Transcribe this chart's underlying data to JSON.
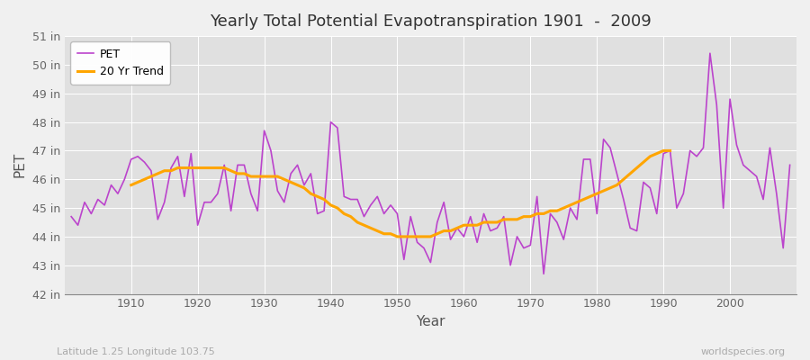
{
  "title": "Yearly Total Potential Evapotranspiration 1901  -  2009",
  "xlabel": "Year",
  "ylabel": "PET",
  "footer_left": "Latitude 1.25 Longitude 103.75",
  "footer_right": "worldspecies.org",
  "pet_color": "#BB44CC",
  "trend_color": "#FFA500",
  "background_color": "#E0E0E0",
  "fig_color": "#F0F0F0",
  "ylim": [
    42,
    51
  ],
  "yticks": [
    42,
    43,
    44,
    45,
    46,
    47,
    48,
    49,
    50,
    51
  ],
  "ytick_labels": [
    "42 in",
    "43 in",
    "44 in",
    "45 in",
    "46 in",
    "47 in",
    "48 in",
    "49 in",
    "50 in",
    "51 in"
  ],
  "years": [
    1901,
    1902,
    1903,
    1904,
    1905,
    1906,
    1907,
    1908,
    1909,
    1910,
    1911,
    1912,
    1913,
    1914,
    1915,
    1916,
    1917,
    1918,
    1919,
    1920,
    1921,
    1922,
    1923,
    1924,
    1925,
    1926,
    1927,
    1928,
    1929,
    1930,
    1931,
    1932,
    1933,
    1934,
    1935,
    1936,
    1937,
    1938,
    1939,
    1940,
    1941,
    1942,
    1943,
    1944,
    1945,
    1946,
    1947,
    1948,
    1949,
    1950,
    1951,
    1952,
    1953,
    1954,
    1955,
    1956,
    1957,
    1958,
    1959,
    1960,
    1961,
    1962,
    1963,
    1964,
    1965,
    1966,
    1967,
    1968,
    1969,
    1970,
    1971,
    1972,
    1973,
    1974,
    1975,
    1976,
    1977,
    1978,
    1979,
    1980,
    1981,
    1982,
    1983,
    1984,
    1985,
    1986,
    1987,
    1988,
    1989,
    1990,
    1991,
    1992,
    1993,
    1994,
    1995,
    1996,
    1997,
    1998,
    1999,
    2000,
    2001,
    2002,
    2003,
    2004,
    2005,
    2006,
    2007,
    2008,
    2009
  ],
  "pet_values": [
    44.7,
    44.4,
    45.2,
    44.8,
    45.3,
    45.1,
    45.8,
    45.5,
    46.0,
    46.7,
    46.8,
    46.6,
    46.3,
    44.6,
    45.2,
    46.4,
    46.8,
    45.4,
    46.9,
    44.4,
    45.2,
    45.2,
    45.5,
    46.5,
    44.9,
    46.5,
    46.5,
    45.5,
    44.9,
    47.7,
    47.0,
    45.6,
    45.2,
    46.2,
    46.5,
    45.8,
    46.2,
    44.8,
    44.9,
    48.0,
    47.8,
    45.4,
    45.3,
    45.3,
    44.7,
    45.1,
    45.4,
    44.8,
    45.1,
    44.8,
    43.2,
    44.7,
    43.8,
    43.6,
    43.1,
    44.5,
    45.2,
    43.9,
    44.3,
    44.0,
    44.7,
    43.8,
    44.8,
    44.2,
    44.3,
    44.7,
    43.0,
    44.0,
    43.6,
    43.7,
    45.4,
    42.7,
    44.8,
    44.5,
    43.9,
    45.0,
    44.6,
    46.7,
    46.7,
    44.8,
    47.4,
    47.1,
    46.2,
    45.3,
    44.3,
    44.2,
    45.9,
    45.7,
    44.8,
    46.9,
    47.0,
    45.0,
    45.5,
    47.0,
    46.8,
    47.1,
    50.4,
    48.6,
    45.0,
    48.8,
    47.2,
    46.5,
    46.3,
    46.1,
    45.3,
    47.1,
    45.5,
    43.6,
    46.5
  ],
  "trend_values": [
    null,
    null,
    null,
    null,
    null,
    null,
    null,
    null,
    null,
    45.8,
    45.9,
    46.0,
    46.1,
    46.2,
    46.3,
    46.3,
    46.4,
    46.4,
    46.4,
    46.4,
    46.4,
    46.4,
    46.4,
    46.4,
    46.3,
    46.2,
    46.2,
    46.1,
    46.1,
    46.1,
    46.1,
    46.1,
    46.0,
    45.9,
    45.8,
    45.7,
    45.5,
    45.4,
    45.3,
    45.1,
    45.0,
    44.8,
    44.7,
    44.5,
    44.4,
    44.3,
    44.2,
    44.1,
    44.1,
    44.0,
    44.0,
    44.0,
    44.0,
    44.0,
    44.0,
    44.1,
    44.2,
    44.2,
    44.3,
    44.4,
    44.4,
    44.4,
    44.5,
    44.5,
    44.5,
    44.6,
    44.6,
    44.6,
    44.7,
    44.7,
    44.8,
    44.8,
    44.9,
    44.9,
    45.0,
    45.1,
    45.2,
    45.3,
    45.4,
    45.5,
    45.6,
    45.7,
    45.8,
    46.0,
    46.2,
    46.4,
    46.6,
    46.8,
    46.9,
    47.0,
    47.0,
    null,
    null,
    null,
    null,
    null,
    null,
    null,
    null,
    null,
    null,
    null,
    null,
    null,
    null,
    null,
    null,
    null,
    null
  ]
}
